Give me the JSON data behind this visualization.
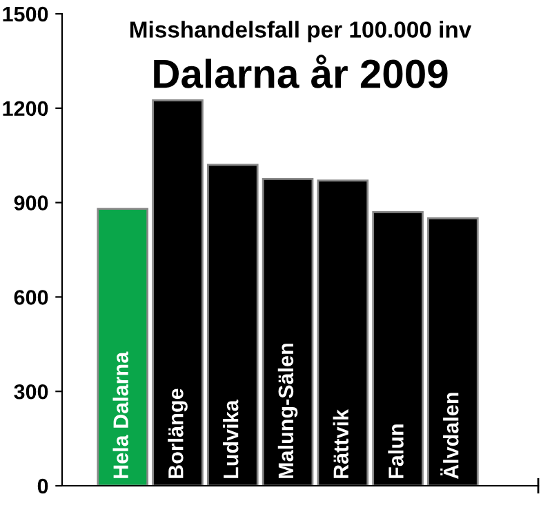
{
  "chart_data": {
    "type": "bar",
    "title": "Dalarna år 2009",
    "subtitle": "Misshandelsfall per 100.000 inv",
    "categories": [
      "Hela Dalarna",
      "Borlänge",
      "Ludvika",
      "Malung-Sälen",
      "Rättvik",
      "Falun",
      "Älvdalen"
    ],
    "values": [
      880,
      1225,
      1020,
      975,
      970,
      870,
      850
    ],
    "colors": [
      "#0aa64a",
      "#000000",
      "#000000",
      "#000000",
      "#000000",
      "#000000",
      "#000000"
    ],
    "ylim": [
      0,
      1500
    ],
    "yticks": [
      0,
      300,
      600,
      900,
      1200,
      1500
    ],
    "grid": false,
    "legend": false
  }
}
